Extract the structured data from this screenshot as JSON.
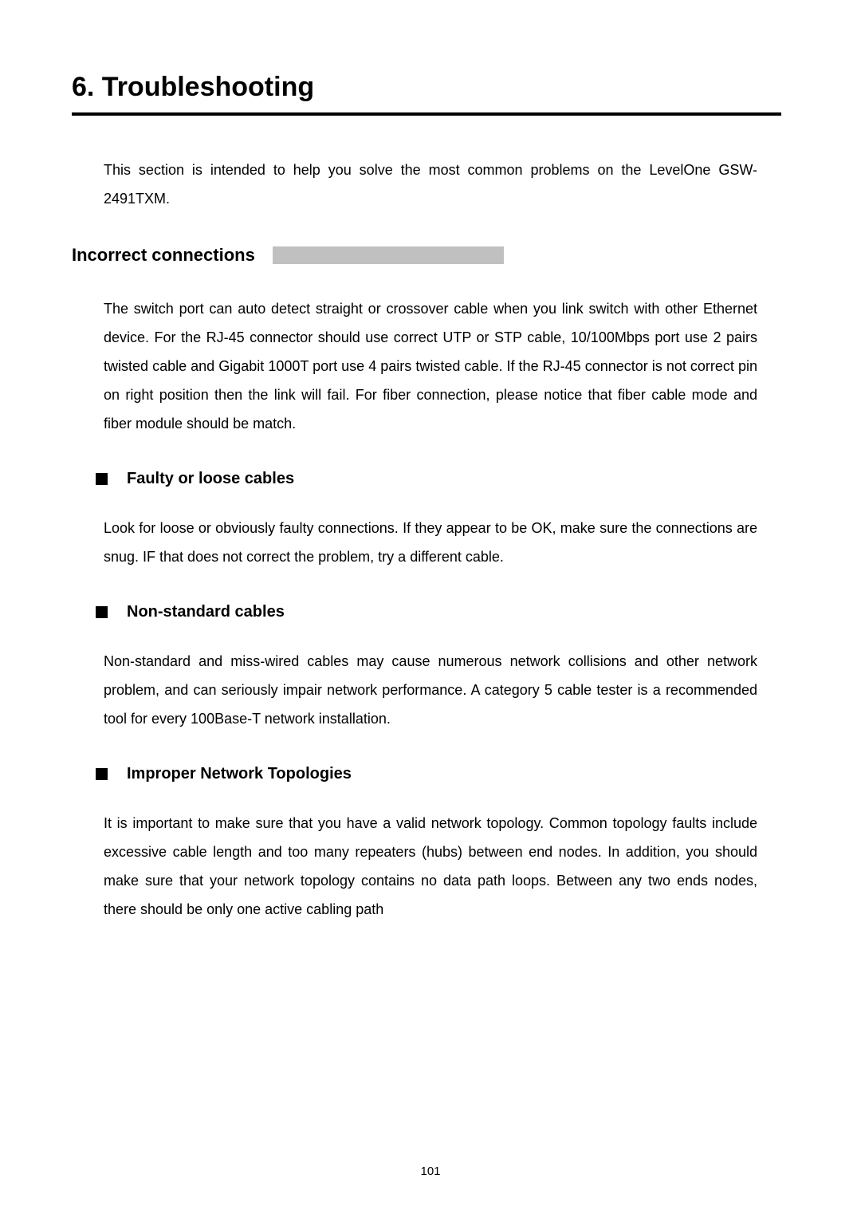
{
  "title": "6. Troubleshooting",
  "intro": "This section is intended to help you solve the most common problems on the LevelOne GSW-2491TXM.",
  "section": {
    "heading": "Incorrect connections",
    "body": "The switch port can auto detect straight or crossover cable when you link switch with other Ethernet device. For the RJ-45 connector should use correct UTP or STP cable, 10/100Mbps port use 2 pairs twisted cable and Gigabit 1000T port use 4 pairs twisted cable. If the RJ-45 connector is not correct pin on right position then the link will fail. For fiber connection, please notice that fiber cable mode and fiber module should be match."
  },
  "bullets": [
    {
      "label": "Faulty or loose cables",
      "body": "Look for loose or obviously faulty connections. If they appear to be OK, make sure the connections are snug. IF that does not correct the problem, try a different cable."
    },
    {
      "label": "Non-standard cables",
      "body": "Non-standard and miss-wired cables may cause numerous network collisions and other network problem, and can seriously impair network performance. A category 5 cable tester is a recommended tool for every 100Base-T network installation."
    },
    {
      "label": "Improper Network Topologies",
      "body": "It is important to make sure that you have a valid network topology. Common topology faults include excessive cable length and too many repeaters (hubs) between end nodes. In addition, you should make sure that your network topology contains no data path loops. Between any two ends nodes, there should be only one active cabling path"
    }
  ],
  "pageNumber": "101",
  "style": {
    "pageWidthPx": 1080,
    "pageHeightPx": 1527,
    "background": "#ffffff",
    "textColor": "#000000",
    "sectionBarColor": "#c0c0c0",
    "titleRuleColor": "#000000",
    "titleRuleThicknessPx": 4,
    "bulletSquareColor": "#000000",
    "font": {
      "family": "Arial, Helvetica, sans-serif",
      "titleSizePx": 34,
      "sectionHeadingSizePx": 22,
      "bulletLabelSizePx": 20,
      "bodySizePx": 18,
      "pageNumberSizePx": 15,
      "bodyLineHeight": 2.0
    },
    "spacing": {
      "pagePaddingTopPx": 90,
      "pagePaddingRightPx": 100,
      "pagePaddingBottomPx": 60,
      "pagePaddingLeftPx": 90
    }
  }
}
